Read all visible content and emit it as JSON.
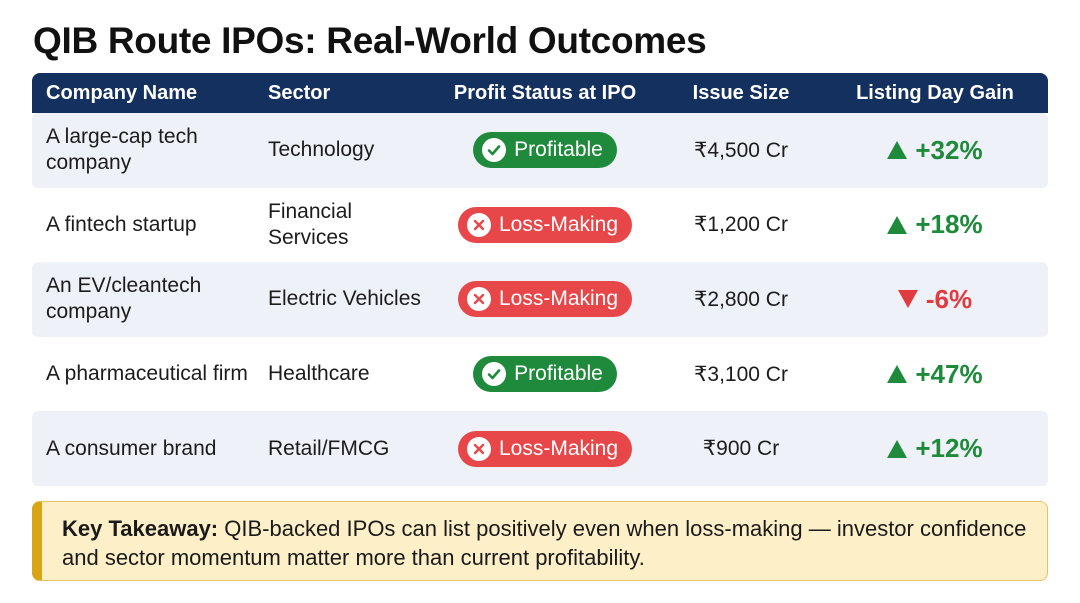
{
  "title": "QIB Route IPOs: Real-World Outcomes",
  "columns": [
    "Company Name",
    "Sector",
    "Profit Status at IPO",
    "Issue Size",
    "Listing Day Gain"
  ],
  "rows": [
    {
      "company": "A large-cap tech company",
      "sector": "Technology",
      "status": "Profitable",
      "status_type": "profitable",
      "issue_size": "₹4,500 Cr",
      "gain": "+32%",
      "direction": "up"
    },
    {
      "company": "A fintech startup",
      "sector": "Financial Services",
      "status": "Loss-Making",
      "status_type": "loss",
      "issue_size": "₹1,200 Cr",
      "gain": "+18%",
      "direction": "up"
    },
    {
      "company": "An EV/cleantech company",
      "sector": "Electric Vehicles",
      "status": "Loss-Making",
      "status_type": "loss",
      "issue_size": "₹2,800 Cr",
      "gain": "-6%",
      "direction": "down"
    },
    {
      "company": "A pharmaceutical firm",
      "sector": "Healthcare",
      "status": "Profitable",
      "status_type": "profitable",
      "issue_size": "₹3,100 Cr",
      "gain": "+47%",
      "direction": "up"
    },
    {
      "company": "A consumer brand",
      "sector": "Retail/FMCG",
      "status": "Loss-Making",
      "status_type": "loss",
      "issue_size": "₹900 Cr",
      "gain": "+12%",
      "direction": "up"
    }
  ],
  "takeaway": {
    "label": "Key Takeaway:",
    "text": " QIB-backed IPOs can list positively even when loss-making — investor confidence and sector momentum matter more than current profitability."
  },
  "colors": {
    "header_bg": "#14305f",
    "profit_green": "#1f8a3b",
    "loss_red": "#e8474a",
    "down_red": "#e03c3f",
    "row_shade": "#eef1f7",
    "takeaway_bg": "#fdf0c8",
    "takeaway_accent": "#d9a514"
  },
  "icons": {
    "profitable": "check-circle-icon",
    "loss": "x-circle-icon",
    "up": "triangle-up-icon",
    "down": "triangle-down-icon"
  }
}
